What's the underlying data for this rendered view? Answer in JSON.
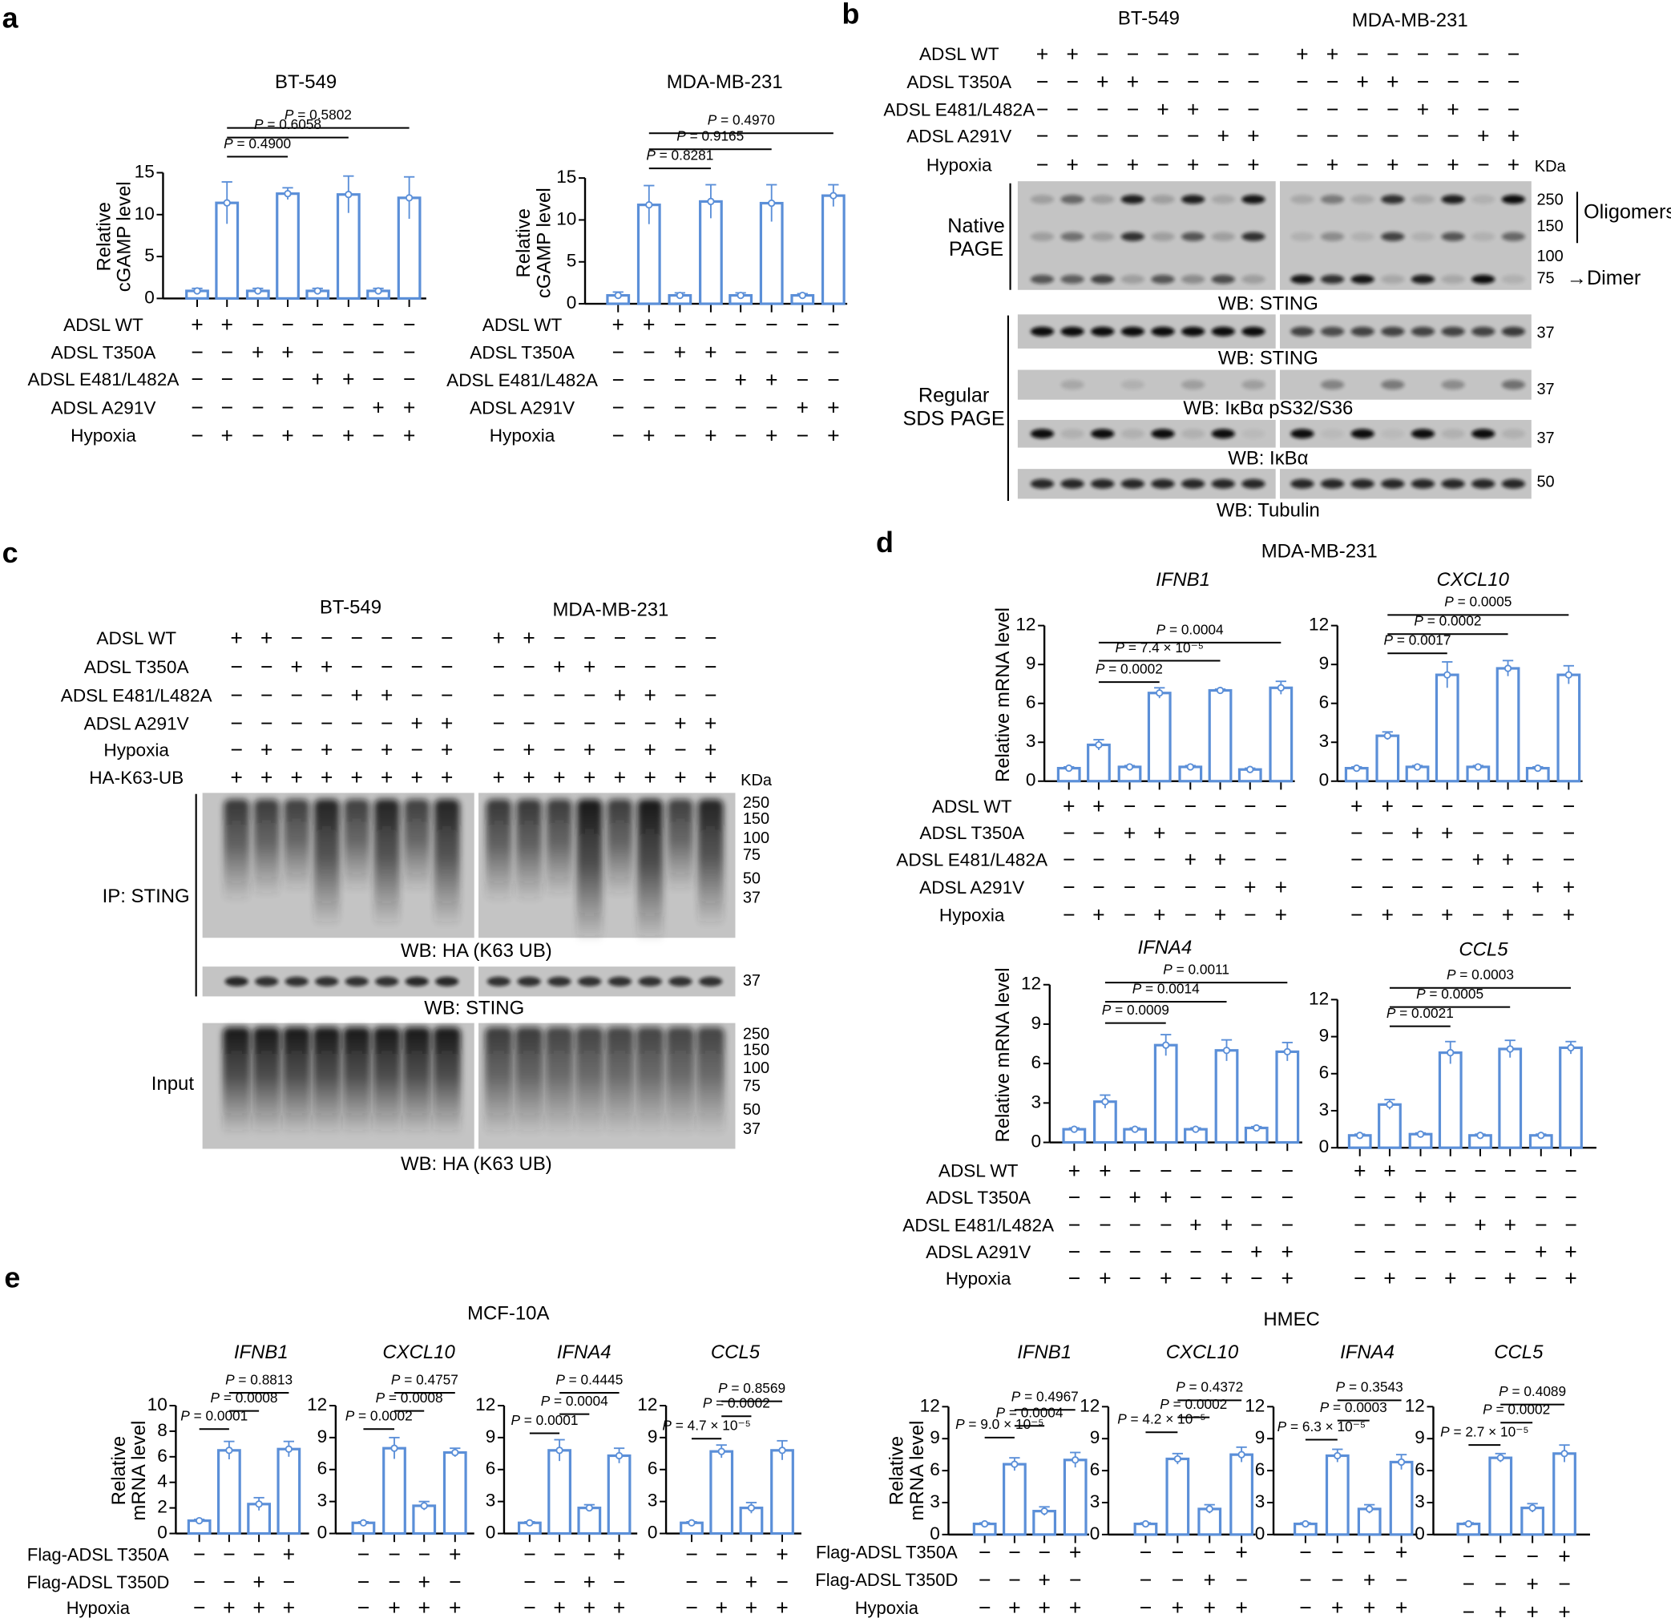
{
  "figure": {
    "panel_labels": {
      "a": "a",
      "b": "b",
      "c": "c",
      "d": "d",
      "e": "e"
    },
    "group_titles": {
      "d": "MDA-MB-231",
      "e_left": "MCF-10A",
      "e_right": "HMEC"
    },
    "colors": {
      "bar": "#5b8fd8",
      "text": "#000000",
      "blot_background": "#c4c4c4",
      "band": "#0e0e0e"
    }
  },
  "panel_a": {
    "conditions": [
      {
        "label": "ADSL WT",
        "signs": "++−−−−−−"
      },
      {
        "label": "ADSL T350A",
        "signs": "−−++−−−−"
      },
      {
        "label": "ADSL E481/L482A",
        "signs": "−−−−++−−"
      },
      {
        "label": "ADSL A291V",
        "signs": "−−−−−−++"
      },
      {
        "label": "Hypoxia",
        "signs": "−+−+−+−+"
      }
    ]
  },
  "panel_d": {
    "conditions": [
      {
        "label": "ADSL WT",
        "signs": "++−−−−−−"
      },
      {
        "label": "ADSL T350A",
        "signs": "−−++−−−−"
      },
      {
        "label": "ADSL E481/L482A",
        "signs": "−−−−++−−"
      },
      {
        "label": "ADSL A291V",
        "signs": "−−−−−−++"
      },
      {
        "label": "Hypoxia",
        "signs": "−+−+−+−+"
      }
    ]
  },
  "panel_e": {
    "conditions": [
      {
        "label": "Flag-ADSL T350A",
        "signs": "−−−+"
      },
      {
        "label": "Flag-ADSL T350D",
        "signs": "−−+−"
      },
      {
        "label": "Hypoxia",
        "signs": "−+++"
      }
    ]
  },
  "panel_b": {
    "cell_lines": [
      "BT-549",
      "MDA-MB-231"
    ],
    "kda_label": "KDa",
    "conditions": [
      {
        "label": "ADSL WT",
        "signs": "++−−−−−−++−−−−−−"
      },
      {
        "label": "ADSL T350A",
        "signs": "−−++−−−−−−++−−−−"
      },
      {
        "label": "ADSL E481/L482A",
        "signs": "−−−−++−−−−−−++−−"
      },
      {
        "label": "ADSL A291V",
        "signs": "−−−−−−++−−−−−−++"
      },
      {
        "label": "Hypoxia",
        "signs": "−+−+−+−+−+−+−+−+"
      }
    ],
    "native": {
      "side_label": [
        "Native",
        "PAGE"
      ],
      "wb_label": "WB: STING",
      "markers": [
        "250",
        "150",
        "100",
        "75"
      ],
      "oligomers_label": "Oligomers",
      "dimer_label": "→Dimer",
      "bands": [
        {
          "name": "oligomer-high",
          "intensity": [
            0.2,
            0.5,
            0.2,
            0.9,
            0.2,
            0.9,
            0.15,
            0.95,
            0.15,
            0.4,
            0.15,
            0.8,
            0.15,
            0.9,
            0.1,
            1.0
          ]
        },
        {
          "name": "oligomer-low",
          "intensity": [
            0.2,
            0.45,
            0.2,
            0.8,
            0.2,
            0.6,
            0.2,
            0.8,
            0.1,
            0.3,
            0.1,
            0.7,
            0.1,
            0.6,
            0.1,
            0.5
          ]
        },
        {
          "name": "dimer",
          "intensity": [
            0.6,
            0.55,
            0.7,
            0.2,
            0.6,
            0.3,
            0.65,
            0.2,
            0.95,
            0.8,
            0.95,
            0.15,
            0.9,
            0.15,
            1.0,
            0.1
          ]
        }
      ]
    },
    "sds": {
      "side_label": [
        "Regular",
        "SDS PAGE"
      ],
      "blots": [
        {
          "wb_label": "WB: STING",
          "marker": "37",
          "intensity": [
            1,
            1,
            1,
            1,
            1,
            1,
            1,
            1,
            0.7,
            0.65,
            0.7,
            0.7,
            0.7,
            0.7,
            0.7,
            0.75
          ]
        },
        {
          "wb_label": "WB: IκBα pS32/S36",
          "marker": "37",
          "intensity": [
            0,
            0.15,
            0,
            0.1,
            0,
            0.2,
            0,
            0.2,
            0,
            0.35,
            0,
            0.4,
            0,
            0.3,
            0,
            0.45
          ]
        },
        {
          "wb_label": "WB: IκBα",
          "marker": "37",
          "intensity": [
            1,
            0.1,
            1,
            0.1,
            1,
            0.1,
            1,
            0.05,
            1,
            0.05,
            1,
            0.05,
            1,
            0.1,
            1,
            0.1
          ]
        },
        {
          "wb_label": "WB: Tubulin",
          "marker": "50",
          "intensity": [
            0.85,
            0.85,
            0.85,
            0.85,
            0.85,
            0.85,
            0.85,
            0.85,
            0.85,
            0.85,
            0.85,
            0.85,
            0.85,
            0.85,
            0.85,
            0.85
          ]
        }
      ]
    }
  },
  "panel_c": {
    "cell_lines": [
      "BT-549",
      "MDA-MB-231"
    ],
    "kda_label": "KDa",
    "conditions": [
      {
        "label": "ADSL WT",
        "signs": "++−−−−−−++−−−−−−"
      },
      {
        "label": "ADSL T350A",
        "signs": "−−++−−−−−−++−−−−"
      },
      {
        "label": "ADSL E481/L482A",
        "signs": "−−−−++−−−−−−++−−"
      },
      {
        "label": "ADSL A291V",
        "signs": "−−−−−−++−−−−−−++"
      },
      {
        "label": "Hypoxia",
        "signs": "−+−+−+−+−+−+−+−+"
      },
      {
        "label": "HA-K63-UB",
        "signs": "++++++++++++++++"
      }
    ],
    "ip": {
      "side_label": "IP: STING",
      "ub_blot": {
        "wb_label": "WB: HA (K63 UB)",
        "markers": [
          "250",
          "150",
          "100",
          "75",
          "50",
          "37"
        ],
        "smear": [
          0.6,
          0.55,
          0.5,
          0.85,
          0.5,
          0.85,
          0.5,
          0.85,
          0.6,
          0.6,
          0.55,
          1.0,
          0.55,
          1.0,
          0.5,
          0.85
        ]
      },
      "sting_blot": {
        "wb_label": "WB: STING",
        "marker": "37",
        "intensity": [
          0.85,
          0.8,
          0.8,
          0.8,
          0.8,
          0.8,
          0.85,
          0.85,
          0.8,
          0.8,
          0.8,
          0.8,
          0.8,
          0.8,
          0.8,
          0.8
        ]
      }
    },
    "input": {
      "side_label": "Input",
      "wb_label": "WB: HA (K63 UB)",
      "markers": [
        "250",
        "150",
        "100",
        "75",
        "50",
        "37"
      ],
      "smear": [
        1,
        1,
        1,
        1,
        1,
        1,
        1,
        1,
        0.8,
        0.8,
        0.75,
        0.75,
        0.75,
        0.75,
        0.75,
        0.75
      ]
    }
  },
  "chart_data": [
    {
      "id": "a-bt549",
      "panel": "a",
      "type": "bar",
      "title": "BT-549",
      "ylabel": [
        "Relative",
        "cGAMP level"
      ],
      "ylim": [
        0,
        15
      ],
      "yticks": [
        0,
        5,
        10,
        15
      ],
      "values": [
        0.9,
        11.4,
        0.9,
        12.5,
        0.9,
        12.4,
        0.9,
        12.0
      ],
      "error": [
        0.3,
        2.5,
        0.3,
        0.7,
        0.3,
        2.2,
        0.3,
        2.5
      ],
      "comparisons": [
        {
          "bars": [
            2,
            4
          ],
          "label": "P = 0.4900"
        },
        {
          "bars": [
            2,
            6
          ],
          "label": "P = 0.6058"
        },
        {
          "bars": [
            2,
            8
          ],
          "label": "P = 0.5802"
        }
      ]
    },
    {
      "id": "a-mdamb231",
      "panel": "a",
      "type": "bar",
      "title": "MDA-MB-231",
      "ylabel": [
        "Relative",
        "cGAMP level"
      ],
      "ylim": [
        0,
        15
      ],
      "yticks": [
        0,
        5,
        10,
        15
      ],
      "values": [
        1.0,
        11.8,
        1.0,
        12.2,
        1.0,
        12.0,
        1.0,
        12.9
      ],
      "error": [
        0.4,
        2.3,
        0.3,
        2.0,
        0.3,
        2.2,
        0.2,
        1.3
      ],
      "comparisons": [
        {
          "bars": [
            2,
            4
          ],
          "label": "P = 0.8281"
        },
        {
          "bars": [
            2,
            6
          ],
          "label": "P = 0.9165"
        },
        {
          "bars": [
            2,
            8
          ],
          "label": "P = 0.4970"
        }
      ]
    },
    {
      "id": "d-ifnb1",
      "panel": "d",
      "type": "bar",
      "title": "IFNB1",
      "ylabel": [
        "Relative mRNA level"
      ],
      "ylim": [
        0,
        12
      ],
      "yticks": [
        0,
        3,
        6,
        9,
        12
      ],
      "values": [
        1.0,
        2.8,
        1.1,
        6.8,
        1.1,
        7.0,
        0.9,
        7.2
      ],
      "error": [
        0.1,
        0.4,
        0.1,
        0.4,
        0.1,
        0.1,
        0.1,
        0.5
      ],
      "comparisons": [
        {
          "bars": [
            2,
            4
          ],
          "label": "P = 0.0002"
        },
        {
          "bars": [
            2,
            6
          ],
          "label": "P = 7.4 × 10⁻⁵"
        },
        {
          "bars": [
            2,
            8
          ],
          "label": "P = 0.0004"
        }
      ]
    },
    {
      "id": "d-cxcl10",
      "panel": "d",
      "type": "bar",
      "title": "CXCL10",
      "ylim": [
        0,
        12
      ],
      "yticks": [
        0,
        3,
        6,
        9,
        12
      ],
      "values": [
        1.0,
        3.5,
        1.1,
        8.2,
        1.1,
        8.7,
        1.0,
        8.2
      ],
      "error": [
        0.1,
        0.3,
        0.1,
        1.0,
        0.1,
        0.6,
        0.1,
        0.7
      ],
      "comparisons": [
        {
          "bars": [
            2,
            4
          ],
          "label": "P = 0.0017"
        },
        {
          "bars": [
            2,
            6
          ],
          "label": "P = 0.0002"
        },
        {
          "bars": [
            2,
            8
          ],
          "label": "P = 0.0005"
        }
      ]
    },
    {
      "id": "d-ifna4",
      "panel": "d",
      "type": "bar",
      "title": "IFNA4",
      "ylabel": [
        "Relative mRNA level"
      ],
      "ylim": [
        0,
        12
      ],
      "yticks": [
        0,
        3,
        6,
        9,
        12
      ],
      "values": [
        1.0,
        3.1,
        1.0,
        7.4,
        1.0,
        7.0,
        1.1,
        6.9
      ],
      "error": [
        0.1,
        0.5,
        0.1,
        0.8,
        0.1,
        0.8,
        0.1,
        0.7
      ],
      "comparisons": [
        {
          "bars": [
            2,
            4
          ],
          "label": "P = 0.0009"
        },
        {
          "bars": [
            2,
            6
          ],
          "label": "P = 0.0014"
        },
        {
          "bars": [
            2,
            8
          ],
          "label": "P = 0.0011"
        }
      ]
    },
    {
      "id": "d-ccl5",
      "panel": "d",
      "type": "bar",
      "title": "CCL5",
      "ylim": [
        0,
        12
      ],
      "yticks": [
        0,
        3,
        6,
        9,
        12
      ],
      "values": [
        1.0,
        3.5,
        1.1,
        7.7,
        1.0,
        8.0,
        1.0,
        8.1
      ],
      "error": [
        0.1,
        0.4,
        0.1,
        0.9,
        0.1,
        0.7,
        0.1,
        0.5
      ],
      "comparisons": [
        {
          "bars": [
            2,
            4
          ],
          "label": "P = 0.0021"
        },
        {
          "bars": [
            2,
            6
          ],
          "label": "P = 0.0005"
        },
        {
          "bars": [
            2,
            8
          ],
          "label": "P = 0.0003"
        }
      ]
    },
    {
      "id": "e-mcf10a-ifnb1",
      "panel": "e",
      "type": "bar",
      "title": "IFNB1",
      "ylabel": [
        "Relative",
        "mRNA level"
      ],
      "ylim": [
        0,
        10
      ],
      "yticks": [
        0,
        2,
        4,
        6,
        8,
        10
      ],
      "values": [
        1.0,
        6.5,
        2.3,
        6.6
      ],
      "error": [
        0.1,
        0.7,
        0.5,
        0.6
      ],
      "comparisons": [
        {
          "bars": [
            1,
            2
          ],
          "label": "P = 0.0001"
        },
        {
          "bars": [
            2,
            3
          ],
          "label": "P = 0.0008"
        },
        {
          "bars": [
            2,
            4
          ],
          "label": "P = 0.8813"
        }
      ]
    },
    {
      "id": "e-mcf10a-cxcl10",
      "panel": "e",
      "type": "bar",
      "title": "CXCL10",
      "ylim": [
        0,
        12
      ],
      "yticks": [
        0,
        3,
        6,
        9,
        12
      ],
      "values": [
        1.0,
        8.0,
        2.6,
        7.6
      ],
      "error": [
        0.1,
        1.0,
        0.4,
        0.4
      ],
      "comparisons": [
        {
          "bars": [
            1,
            2
          ],
          "label": "P = 0.0002"
        },
        {
          "bars": [
            2,
            3
          ],
          "label": "P = 0.0008"
        },
        {
          "bars": [
            2,
            4
          ],
          "label": "P = 0.4757"
        }
      ]
    },
    {
      "id": "e-mcf10a-ifna4",
      "panel": "e",
      "type": "bar",
      "title": "IFNA4",
      "ylim": [
        0,
        12
      ],
      "yticks": [
        0,
        3,
        6,
        9,
        12
      ],
      "values": [
        1.0,
        7.8,
        2.4,
        7.3
      ],
      "error": [
        0.1,
        1.0,
        0.3,
        0.7
      ],
      "comparisons": [
        {
          "bars": [
            1,
            2
          ],
          "label": "P = 0.0001"
        },
        {
          "bars": [
            2,
            3
          ],
          "label": "P = 0.0004"
        },
        {
          "bars": [
            2,
            4
          ],
          "label": "P = 0.4445"
        }
      ]
    },
    {
      "id": "e-mcf10a-ccl5",
      "panel": "e",
      "type": "bar",
      "title": "CCL5",
      "ylim": [
        0,
        12
      ],
      "yticks": [
        0,
        3,
        6,
        9,
        12
      ],
      "values": [
        1.0,
        7.7,
        2.4,
        7.8
      ],
      "error": [
        0.1,
        0.6,
        0.5,
        0.9
      ],
      "comparisons": [
        {
          "bars": [
            1,
            2
          ],
          "label": "P = 4.7 × 10⁻⁵"
        },
        {
          "bars": [
            2,
            3
          ],
          "label": "P = 0.0002"
        },
        {
          "bars": [
            2,
            4
          ],
          "label": "P = 0.8569"
        }
      ]
    },
    {
      "id": "e-hmec-ifnb1",
      "panel": "e",
      "type": "bar",
      "title": "IFNB1",
      "ylabel": [
        "Relative",
        "mRNA level"
      ],
      "ylim": [
        0,
        12
      ],
      "yticks": [
        0,
        3,
        6,
        9,
        12
      ],
      "values": [
        1.0,
        6.6,
        2.2,
        7.0
      ],
      "error": [
        0.1,
        0.6,
        0.4,
        0.7
      ],
      "comparisons": [
        {
          "bars": [
            1,
            2
          ],
          "label": "P = 9.0 × 10⁻⁵"
        },
        {
          "bars": [
            2,
            3
          ],
          "label": "P = 0.0004"
        },
        {
          "bars": [
            2,
            4
          ],
          "label": "P = 0.4967"
        }
      ]
    },
    {
      "id": "e-hmec-cxcl10",
      "panel": "e",
      "type": "bar",
      "title": "CXCL10",
      "ylim": [
        0,
        12
      ],
      "yticks": [
        0,
        3,
        6,
        9,
        12
      ],
      "values": [
        1.0,
        7.1,
        2.4,
        7.5
      ],
      "error": [
        0.1,
        0.5,
        0.4,
        0.7
      ],
      "comparisons": [
        {
          "bars": [
            1,
            2
          ],
          "label": "P = 4.2 × 10⁻⁵"
        },
        {
          "bars": [
            2,
            3
          ],
          "label": "P = 0.0002"
        },
        {
          "bars": [
            2,
            4
          ],
          "label": "P = 0.4372"
        }
      ]
    },
    {
      "id": "e-hmec-ifna4",
      "panel": "e",
      "type": "bar",
      "title": "IFNA4",
      "ylim": [
        0,
        12
      ],
      "yticks": [
        0,
        3,
        6,
        9,
        12
      ],
      "values": [
        1.0,
        7.4,
        2.4,
        6.8
      ],
      "error": [
        0.1,
        0.6,
        0.4,
        0.7
      ],
      "comparisons": [
        {
          "bars": [
            1,
            2
          ],
          "label": "P = 6.3 × 10⁻⁵"
        },
        {
          "bars": [
            2,
            3
          ],
          "label": "P = 0.0003"
        },
        {
          "bars": [
            2,
            4
          ],
          "label": "P = 0.3543"
        }
      ]
    },
    {
      "id": "e-hmec-ccl5",
      "panel": "e",
      "type": "bar",
      "title": "CCL5",
      "ylim": [
        0,
        12
      ],
      "yticks": [
        0,
        3,
        6,
        9,
        12
      ],
      "values": [
        1.0,
        7.2,
        2.5,
        7.6
      ],
      "error": [
        0.1,
        0.4,
        0.4,
        0.8
      ],
      "comparisons": [
        {
          "bars": [
            1,
            2
          ],
          "label": "P = 2.7 × 10⁻⁵"
        },
        {
          "bars": [
            2,
            3
          ],
          "label": "P = 0.0002"
        },
        {
          "bars": [
            2,
            4
          ],
          "label": "P = 0.4089"
        }
      ]
    }
  ]
}
